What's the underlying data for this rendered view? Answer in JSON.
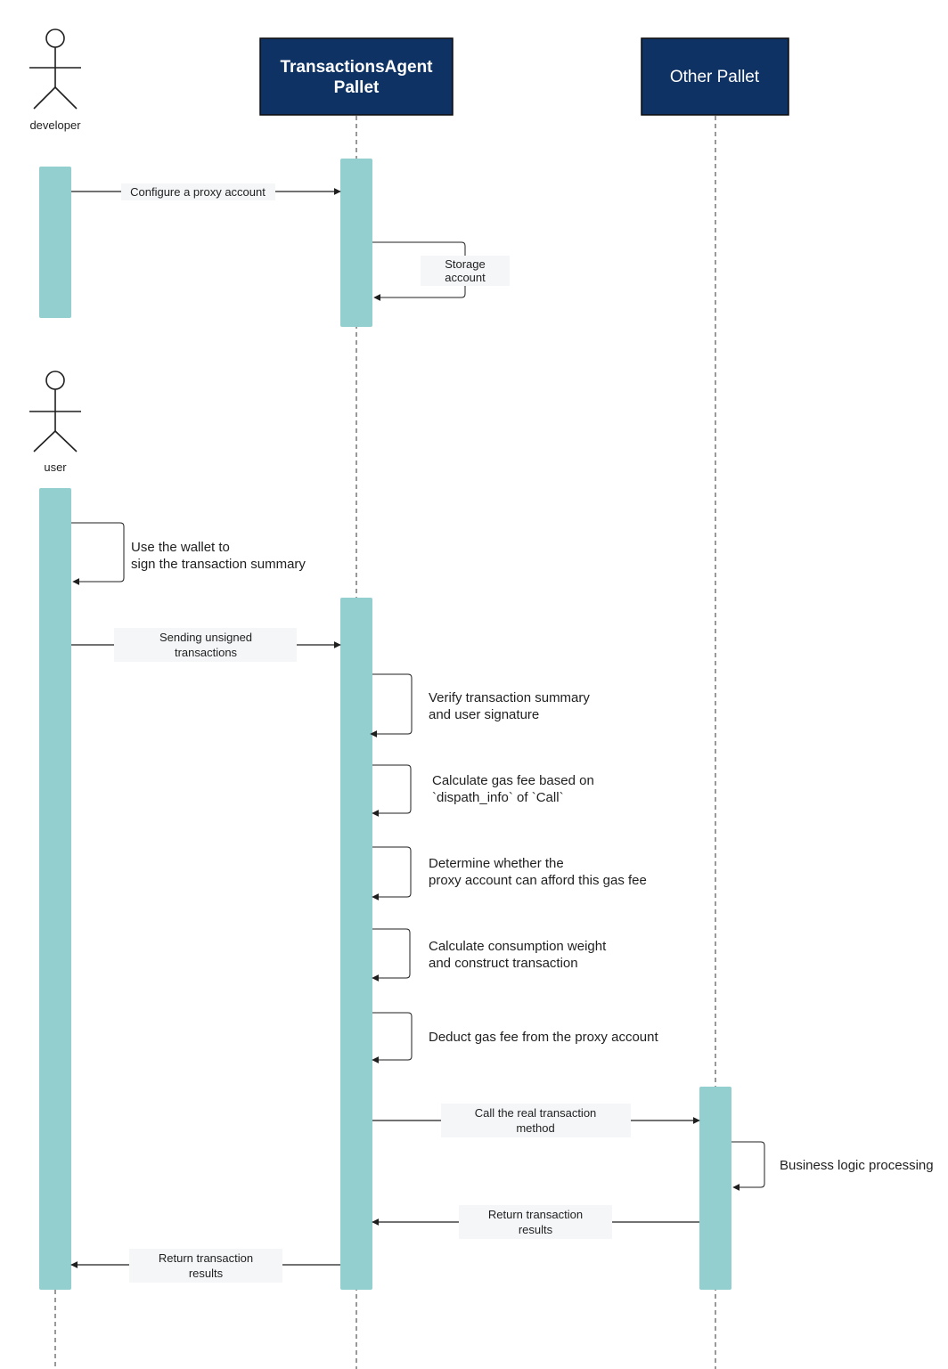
{
  "actors": {
    "developer": {
      "name": "developer"
    },
    "user": {
      "name": "user"
    }
  },
  "participants": {
    "agent": {
      "line1": "TransactionsAgent",
      "line2": "Pallet"
    },
    "other": {
      "title": "Other Pallet"
    }
  },
  "messages": {
    "configure": "Configure a proxy account",
    "storage": {
      "line1": "Storage",
      "line2": "account"
    },
    "sign": {
      "line1": "Use the wallet to",
      "line2": "sign the transaction summary"
    },
    "sending": {
      "line1": "Sending unsigned",
      "line2": "transactions"
    },
    "verify": {
      "line1": "Verify transaction summary",
      "line2": "and user signature"
    },
    "calc_gas": {
      "line1": "Calculate gas fee based on",
      "line2": "`dispath_info` of `Call`"
    },
    "determine": {
      "line1": "Determine whether the",
      "line2": "proxy account can afford this gas fee"
    },
    "consumption": {
      "line1": "Calculate consumption weight",
      "line2": "and construct transaction"
    },
    "deduct": "Deduct gas fee from the proxy account",
    "call_real": {
      "line1": "Call the real transaction",
      "line2": "method"
    },
    "business": "Business logic processing",
    "return_other": {
      "line1": "Return transaction",
      "line2": "results"
    },
    "return_user": {
      "line1": "Return transaction",
      "line2": "results"
    }
  },
  "colors": {
    "participant_fill": "#0e3263",
    "activation_fill": "#92cfce",
    "label_background": "#f5f6f8"
  }
}
